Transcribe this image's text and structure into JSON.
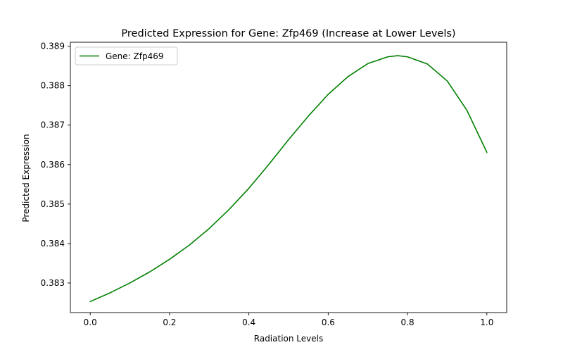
{
  "chart_data": {
    "type": "line",
    "title": "Predicted Expression for Gene: Zfp469 (Increase at Lower Levels)",
    "xlabel": "Radiation Levels",
    "ylabel": "Predicted Expression",
    "xlim": [
      -0.05,
      1.05
    ],
    "ylim": [
      0.38225,
      0.3891
    ],
    "xticks": [
      0.0,
      0.2,
      0.4,
      0.6,
      0.8,
      1.0
    ],
    "xtick_labels": [
      "0.0",
      "0.2",
      "0.4",
      "0.6",
      "0.8",
      "1.0"
    ],
    "yticks": [
      0.383,
      0.384,
      0.385,
      0.386,
      0.387,
      0.388,
      0.389
    ],
    "ytick_labels": [
      "0.383",
      "0.384",
      "0.385",
      "0.386",
      "0.387",
      "0.388",
      "0.389"
    ],
    "grid": false,
    "legend_position": "upper left",
    "series": [
      {
        "name": "Gene: Zfp469",
        "color": "#008000",
        "x": [
          0.0,
          0.05,
          0.1,
          0.15,
          0.2,
          0.25,
          0.3,
          0.35,
          0.4,
          0.45,
          0.5,
          0.55,
          0.6,
          0.65,
          0.7,
          0.75,
          0.775,
          0.8,
          0.85,
          0.9,
          0.95,
          1.0
        ],
        "y": [
          0.38253,
          0.38275,
          0.383,
          0.38328,
          0.3836,
          0.38396,
          0.38438,
          0.38486,
          0.3854,
          0.386,
          0.38663,
          0.38723,
          0.38778,
          0.38823,
          0.38856,
          0.38873,
          0.38876,
          0.38873,
          0.38855,
          0.38812,
          0.38737,
          0.38631
        ]
      }
    ]
  }
}
